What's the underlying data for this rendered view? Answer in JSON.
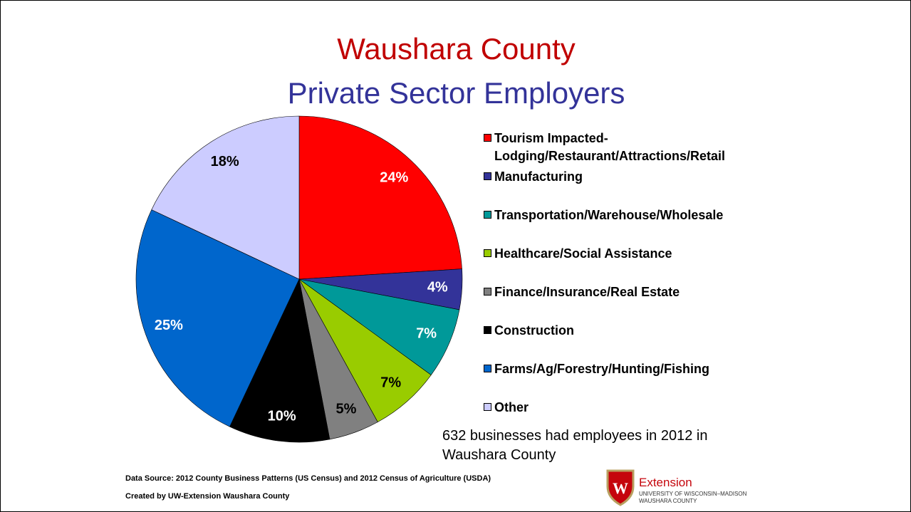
{
  "chart_data": {
    "type": "pie",
    "title": "Waushara County",
    "subtitle": "Private Sector Employers",
    "categories": [
      "Tourism Impacted-Lodging/Restaurant/Attractions/Retail",
      "Manufacturing",
      "Transportation/Warehouse/Wholesale",
      "Healthcare/Social Assistance",
      "Finance/Insurance/Real Estate",
      "Construction",
      "Farms/Ag/Forestry/Hunting/Fishing",
      "Other"
    ],
    "values": [
      24,
      4,
      7,
      7,
      5,
      10,
      25,
      18
    ],
    "value_labels": [
      "24%",
      "4%",
      "7%",
      "7%",
      "5%",
      "10%",
      "25%",
      "18%"
    ],
    "colors": [
      "#ff0000",
      "#333399",
      "#009999",
      "#99cc00",
      "#808080",
      "#000000",
      "#0066cc",
      "#ccccff"
    ],
    "legend": "right",
    "annotation": "632 businesses had employees in 2012 in Waushara County",
    "source": "Data Source: 2012 County Business Patterns (US Census) and 2012 Census of Agriculture (USDA)",
    "credit": "Created by UW-Extension Waushara County"
  },
  "logo": {
    "name": "Extension",
    "university": "UNIVERSITY OF WISCONSIN–MADISON",
    "county": "WAUSHARA COUNTY"
  }
}
